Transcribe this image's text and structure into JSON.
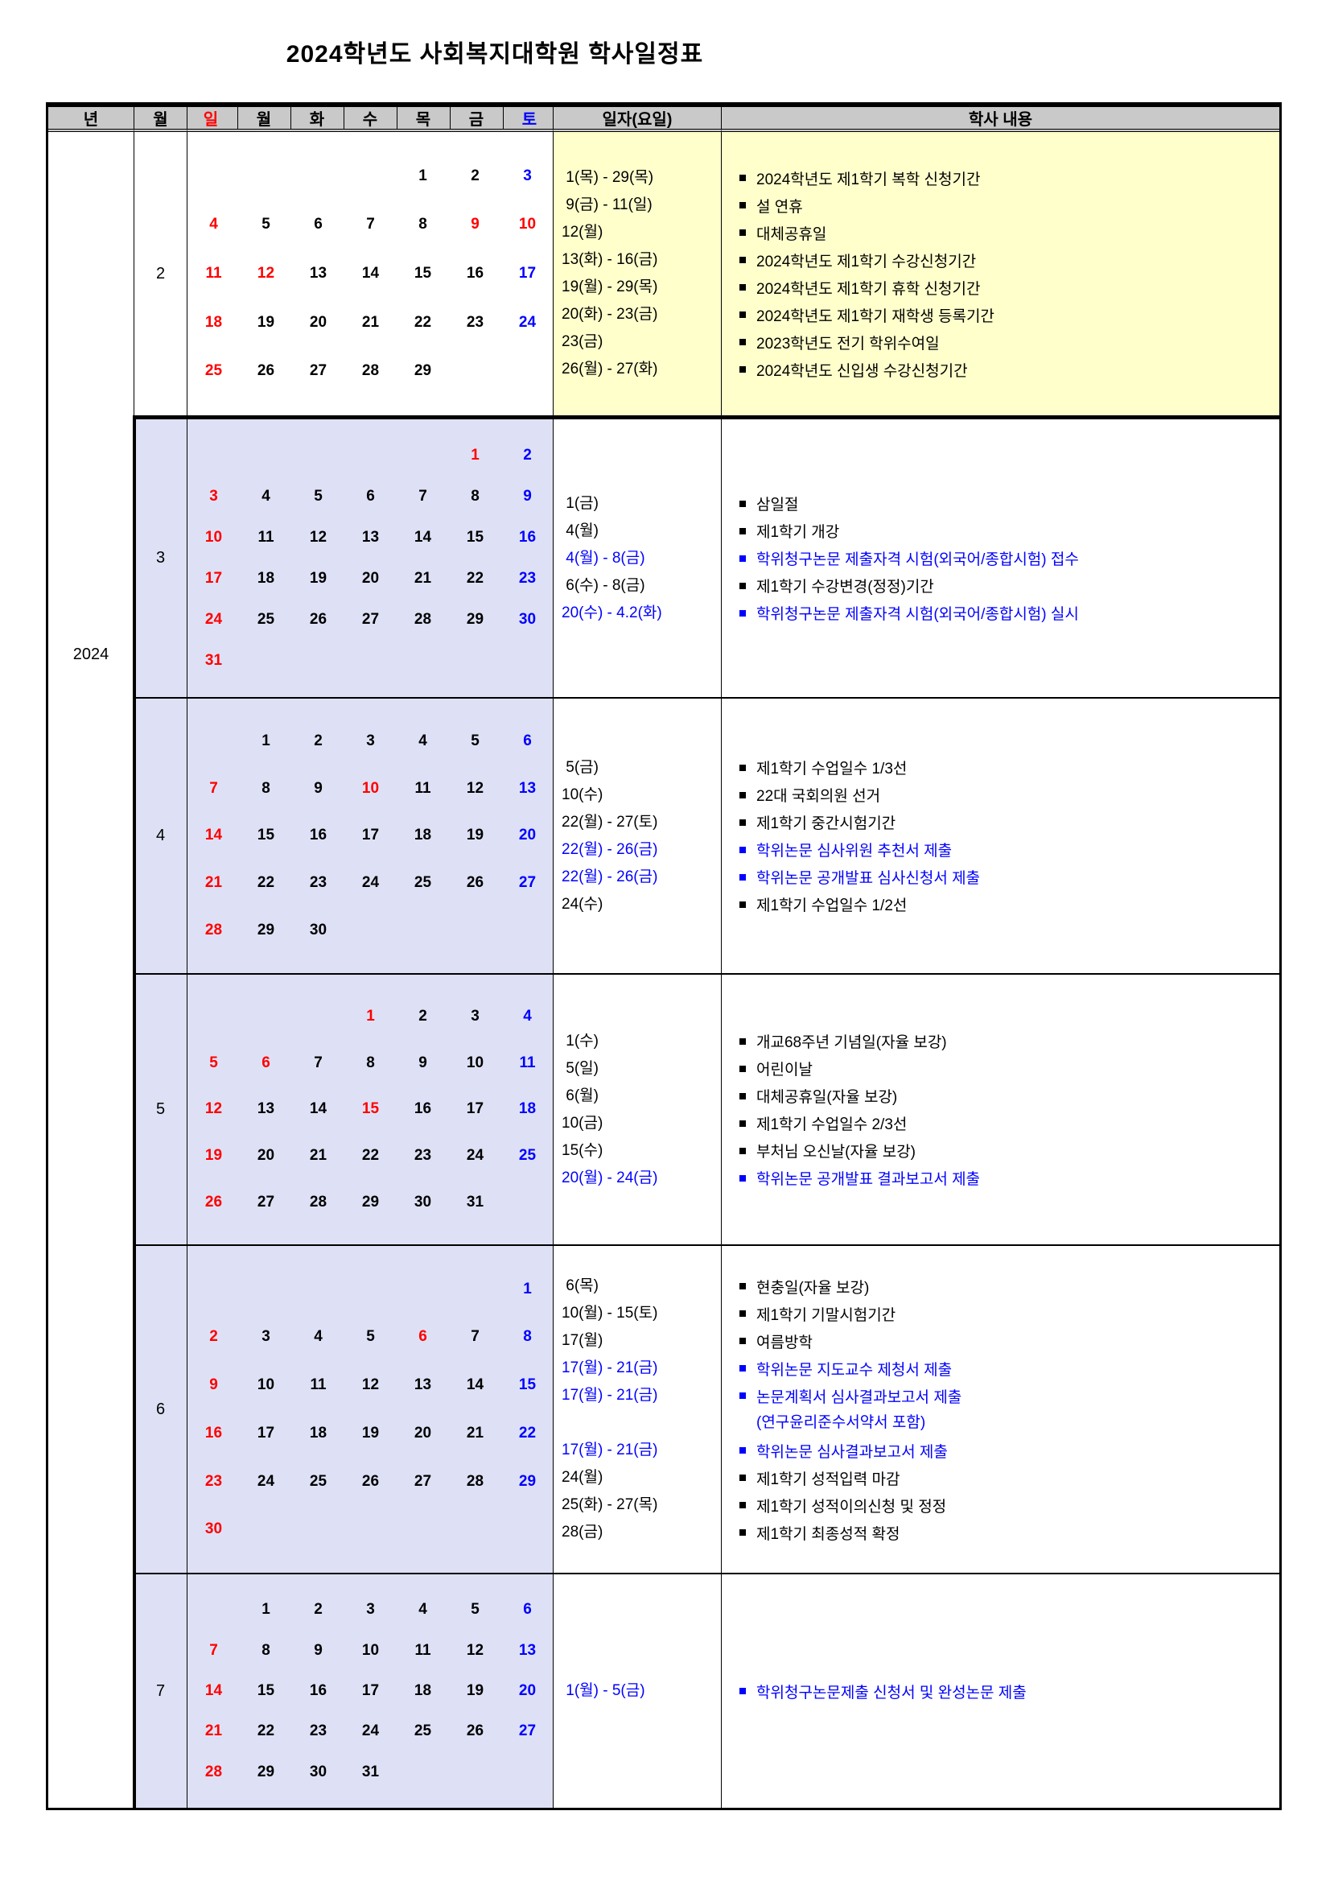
{
  "title": "2024학년도  사회복지대학원  학사일정표",
  "year_label": "2024",
  "header": {
    "year_col": "년",
    "month_col": "월",
    "days": [
      {
        "label": "일",
        "color": "red"
      },
      {
        "label": "월",
        "color": "black"
      },
      {
        "label": "화",
        "color": "black"
      },
      {
        "label": "수",
        "color": "black"
      },
      {
        "label": "목",
        "color": "black"
      },
      {
        "label": "금",
        "color": "black"
      },
      {
        "label": "토",
        "color": "blue"
      }
    ],
    "date_col": "일자(요일)",
    "content_col": "학사 내용"
  },
  "colors": {
    "red": "#ff0000",
    "blue": "#0000ff",
    "yellow_bg": "#ffffcc",
    "lavender_bg": "#dee1f5",
    "header_bg": "#c9c9c9"
  },
  "months": [
    {
      "label": "2",
      "cal_theme": "white",
      "events_theme": "yellow",
      "weeks": [
        [
          "",
          "",
          "",
          "",
          "1",
          "2",
          "3b"
        ],
        [
          "4r",
          "5",
          "6",
          "7",
          "8",
          "9r",
          "10r"
        ],
        [
          "11r",
          "12r",
          "13",
          "14",
          "15",
          "16",
          "17b"
        ],
        [
          "18r",
          "19",
          "20",
          "21",
          "22",
          "23",
          "24b"
        ],
        [
          "25r",
          "26",
          "27",
          "28",
          "29",
          "",
          ""
        ]
      ],
      "events": [
        {
          "date": " 1(목) - 29(목)",
          "text": "2024학년도 제1학기 복학 신청기간",
          "color": "black"
        },
        {
          "date": " 9(금) - 11(일)",
          "text": "설 연휴",
          "color": "black"
        },
        {
          "date": "12(월)",
          "text": "대체공휴일",
          "color": "black"
        },
        {
          "date": "13(화) - 16(금)",
          "text": "2024학년도 제1학기 수강신청기간",
          "color": "black"
        },
        {
          "date": "19(월) - 29(목)",
          "text": "2024학년도 제1학기 휴학 신청기간",
          "color": "black"
        },
        {
          "date": "20(화) - 23(금)",
          "text": "2024학년도 제1학기 재학생 등록기간",
          "color": "black"
        },
        {
          "date": "23(금)",
          "text": "2023학년도 전기 학위수여일",
          "color": "black"
        },
        {
          "date": "26(월) - 27(화)",
          "text": "2024학년도 신입생 수강신청기간",
          "color": "black"
        }
      ]
    },
    {
      "label": "3",
      "cal_theme": "lavender",
      "events_theme": "white",
      "weeks": [
        [
          "",
          "",
          "",
          "",
          "",
          "1r",
          "2b"
        ],
        [
          "3r",
          "4",
          "5",
          "6",
          "7",
          "8",
          "9b"
        ],
        [
          "10r",
          "11",
          "12",
          "13",
          "14",
          "15",
          "16b"
        ],
        [
          "17r",
          "18",
          "19",
          "20",
          "21",
          "22",
          "23b"
        ],
        [
          "24r",
          "25",
          "26",
          "27",
          "28",
          "29",
          "30b"
        ],
        [
          "31r",
          "",
          "",
          "",
          "",
          "",
          ""
        ]
      ],
      "events": [
        {
          "date": " 1(금)",
          "text": "삼일절",
          "color": "black"
        },
        {
          "date": " 4(월)",
          "text": "제1학기 개강",
          "color": "black"
        },
        {
          "date": " 4(월) - 8(금)",
          "text": "학위청구논문 제출자격 시험(외국어/종합시험) 접수",
          "color": "blue"
        },
        {
          "date": " 6(수) - 8(금)",
          "text": "제1학기 수강변경(정정)기간",
          "color": "black"
        },
        {
          "date": "20(수) - 4.2(화)",
          "text": "학위청구논문 제출자격 시험(외국어/종합시험) 실시",
          "color": "blue"
        }
      ]
    },
    {
      "label": "4",
      "cal_theme": "lavender",
      "events_theme": "white",
      "weeks": [
        [
          "",
          "1",
          "2",
          "3",
          "4",
          "5",
          "6b"
        ],
        [
          "7r",
          "8",
          "9",
          "10r",
          "11",
          "12",
          "13b"
        ],
        [
          "14r",
          "15",
          "16",
          "17",
          "18",
          "19",
          "20b"
        ],
        [
          "21r",
          "22",
          "23",
          "24",
          "25",
          "26",
          "27b"
        ],
        [
          "28r",
          "29",
          "30",
          "",
          "",
          "",
          ""
        ]
      ],
      "events": [
        {
          "date": " 5(금)",
          "text": "제1학기 수업일수 1/3선",
          "color": "black"
        },
        {
          "date": "10(수)",
          "text": "22대 국회의원 선거",
          "color": "black"
        },
        {
          "date": "22(월) - 27(토)",
          "text": "제1학기 중간시험기간",
          "color": "black"
        },
        {
          "date": "22(월) - 26(금)",
          "text": "학위논문 심사위원 추천서 제출",
          "color": "blue"
        },
        {
          "date": "22(월) - 26(금)",
          "text": "학위논문 공개발표 심사신청서 제출",
          "color": "blue"
        },
        {
          "date": "24(수)",
          "text": "제1학기 수업일수 1/2선",
          "color": "black"
        }
      ]
    },
    {
      "label": "5",
      "cal_theme": "lavender",
      "events_theme": "white",
      "weeks": [
        [
          "",
          "",
          "",
          "1r",
          "2",
          "3",
          "4b"
        ],
        [
          "5r",
          "6r",
          "7",
          "8",
          "9",
          "10",
          "11b"
        ],
        [
          "12r",
          "13",
          "14",
          "15r",
          "16",
          "17",
          "18b"
        ],
        [
          "19r",
          "20",
          "21",
          "22",
          "23",
          "24",
          "25b"
        ],
        [
          "26r",
          "27",
          "28",
          "29",
          "30",
          "31",
          ""
        ]
      ],
      "events": [
        {
          "date": " 1(수)",
          "text": "개교68주년 기념일(자율 보강)",
          "color": "black"
        },
        {
          "date": " 5(일)",
          "text": "어린이날",
          "color": "black"
        },
        {
          "date": " 6(월)",
          "text": "대체공휴일(자율 보강)",
          "color": "black"
        },
        {
          "date": "10(금)",
          "text": "제1학기 수업일수 2/3선",
          "color": "black"
        },
        {
          "date": "15(수)",
          "text": "부처님 오신날(자율 보강)",
          "color": "black"
        },
        {
          "date": "20(월) - 24(금)",
          "text": "학위논문 공개발표 결과보고서 제출",
          "color": "blue"
        }
      ]
    },
    {
      "label": "6",
      "cal_theme": "lavender",
      "events_theme": "white",
      "weeks": [
        [
          "",
          "",
          "",
          "",
          "",
          "",
          "1b"
        ],
        [
          "2r",
          "3",
          "4",
          "5",
          "6r",
          "7",
          "8b"
        ],
        [
          "9r",
          "10",
          "11",
          "12",
          "13",
          "14",
          "15b"
        ],
        [
          "16r",
          "17",
          "18",
          "19",
          "20",
          "21",
          "22b"
        ],
        [
          "23r",
          "24",
          "25",
          "26",
          "27",
          "28",
          "29b"
        ],
        [
          "30r",
          "",
          "",
          "",
          "",
          "",
          ""
        ]
      ],
      "events": [
        {
          "date": " 6(목)",
          "text": "현충일(자율 보강)",
          "color": "black"
        },
        {
          "date": "10(월) - 15(토)",
          "text": "제1학기 기말시험기간",
          "color": "black"
        },
        {
          "date": "17(월)",
          "text": "여름방학",
          "color": "black"
        },
        {
          "date": "17(월) - 21(금)",
          "text": "학위논문 지도교수 제청서 제출",
          "color": "blue"
        },
        {
          "date": "17(월) - 21(금)",
          "text": "논문계획서 심사결과보고서 제출",
          "text2": "(연구윤리준수서약서 포함)",
          "color": "blue"
        },
        {
          "date": "17(월) - 21(금)",
          "text": "학위논문 심사결과보고서 제출",
          "color": "blue"
        },
        {
          "date": "24(월)",
          "text": "제1학기 성적입력 마감",
          "color": "black"
        },
        {
          "date": "25(화) - 27(목)",
          "text": "제1학기 성적이의신청 및 정정",
          "color": "black"
        },
        {
          "date": "28(금)",
          "text": "제1학기 최종성적 확정",
          "color": "black"
        }
      ]
    },
    {
      "label": "7",
      "cal_theme": "lavender",
      "events_theme": "white",
      "weeks": [
        [
          "",
          "1",
          "2",
          "3",
          "4",
          "5",
          "6b"
        ],
        [
          "7r",
          "8",
          "9",
          "10",
          "11",
          "12",
          "13b"
        ],
        [
          "14r",
          "15",
          "16",
          "17",
          "18",
          "19",
          "20b"
        ],
        [
          "21r",
          "22",
          "23",
          "24",
          "25",
          "26",
          "27b"
        ],
        [
          "28r",
          "29",
          "30",
          "31",
          "",
          "",
          ""
        ]
      ],
      "events": [
        {
          "date": " 1(월) - 5(금)",
          "text": "학위청구논문제출 신청서 및 완성논문 제출",
          "color": "blue"
        }
      ]
    }
  ]
}
